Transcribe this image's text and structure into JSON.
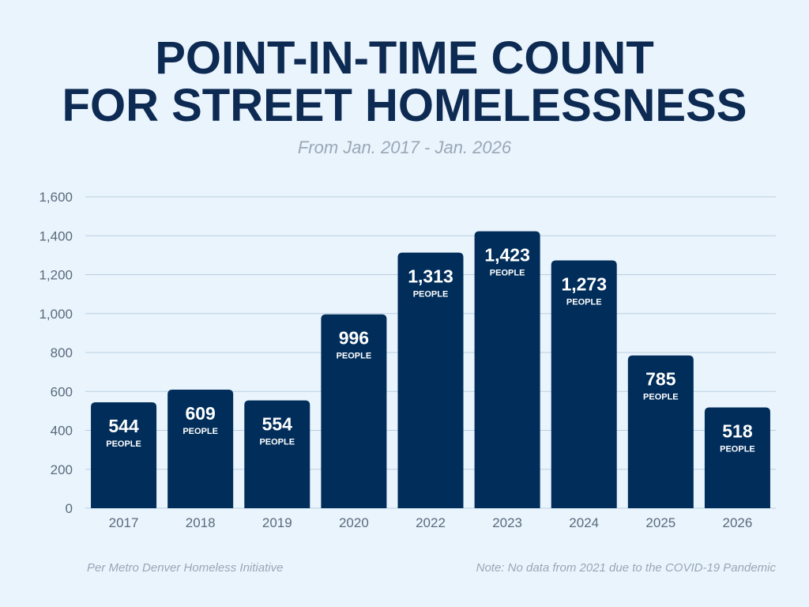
{
  "header": {
    "title_line1": "POINT-IN-TIME COUNT",
    "title_line2": "FOR STREET HOMELESSNESS",
    "subtitle": "From Jan. 2017 - Jan. 2026"
  },
  "footer": {
    "source": "Per Metro Denver Homeless Initiative",
    "note": "Note: No data from 2021 due to the COVID-19 Pandemic"
  },
  "colors": {
    "bar": "#002d5a",
    "title": "#0d2a52",
    "grid": "#b9cfe0",
    "tick": "#5a6a7c",
    "background": "#eaf4fd"
  },
  "chart_data": {
    "type": "bar",
    "title": "POINT-IN-TIME COUNT FOR STREET HOMELESSNESS",
    "subtitle": "From Jan. 2017 - Jan. 2026",
    "categories": [
      "2017",
      "2018",
      "2019",
      "2020",
      "2022",
      "2023",
      "2024",
      "2025",
      "2026"
    ],
    "values": [
      544,
      609,
      554,
      996,
      1313,
      1423,
      1273,
      785,
      518
    ],
    "value_labels": [
      "544",
      "609",
      "554",
      "996",
      "1,313",
      "1,423",
      "1,273",
      "785",
      "518"
    ],
    "unit_label": "PEOPLE",
    "ylim": [
      0,
      1600
    ],
    "yticks": [
      0,
      200,
      400,
      600,
      800,
      1000,
      1200,
      1400,
      1600
    ],
    "ytick_labels": [
      "0",
      "200",
      "400",
      "600",
      "800",
      "1,000",
      "1,200",
      "1,400",
      "1,600"
    ],
    "grid": true,
    "xlabel": "",
    "ylabel": ""
  }
}
